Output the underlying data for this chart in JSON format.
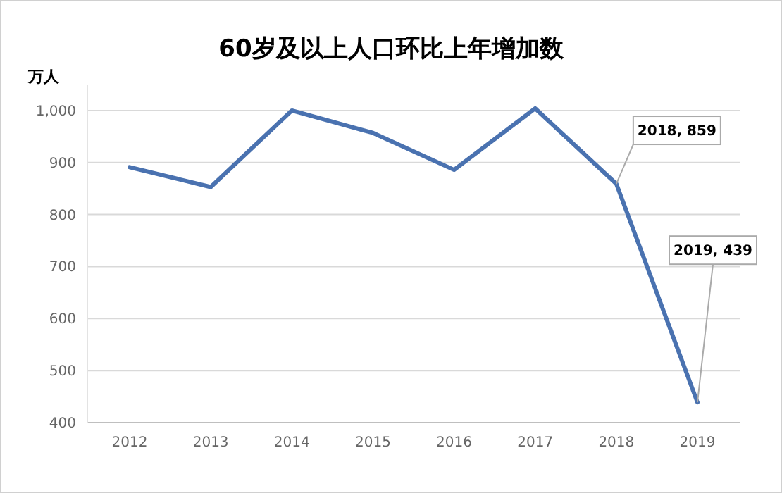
{
  "chart_data": {
    "type": "line",
    "title": "60岁及以上人口环比上年增加数",
    "ylabel": "万人",
    "categories": [
      "2012",
      "2013",
      "2014",
      "2015",
      "2016",
      "2017",
      "2018",
      "2019"
    ],
    "series": [
      {
        "color": "#4a72b0",
        "values": [
          891,
          853,
          1000,
          957,
          886,
          1004,
          859,
          439
        ]
      }
    ],
    "ylim": [
      400,
      1050
    ],
    "yticks": [
      {
        "value": 400,
        "label": "400"
      },
      {
        "value": 500,
        "label": "500"
      },
      {
        "value": 600,
        "label": "600"
      },
      {
        "value": 700,
        "label": "700"
      },
      {
        "value": 800,
        "label": "800"
      },
      {
        "value": 900,
        "label": "900"
      },
      {
        "value": 1000,
        "label": "1,000"
      }
    ],
    "grid": "y",
    "marker": "none",
    "line_style": "solid",
    "annotations": [
      {
        "text": "2018, 859",
        "x": "2018",
        "y": 859
      },
      {
        "text": "2019, 439",
        "x": "2019",
        "y": 439
      }
    ]
  }
}
